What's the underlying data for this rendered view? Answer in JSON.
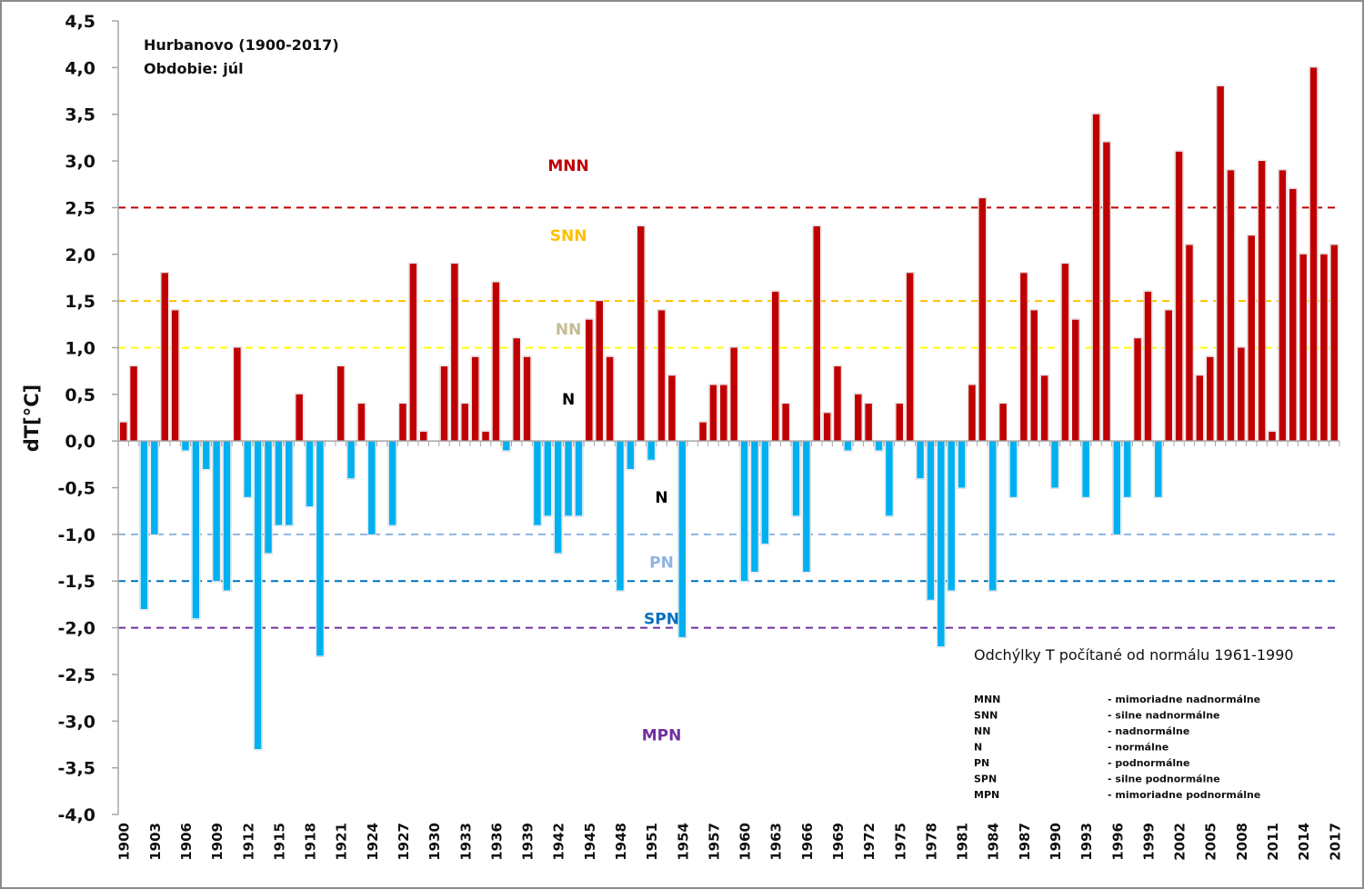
{
  "chart_data": {
    "type": "bar",
    "title": "Hurbanovo (1900-2017)",
    "subtitle": "Obdobie: júl",
    "xlabel": "",
    "ylabel": "dT[°C]",
    "ylim": [
      -4.0,
      4.5
    ],
    "y_ticks": [
      "4,5",
      "4,0",
      "3,5",
      "3,0",
      "2,5",
      "2,0",
      "1,5",
      "1,0",
      "0,5",
      "0,0",
      "-0,5",
      "-1,0",
      "-1,5",
      "-2,0",
      "-2,5",
      "-3,0",
      "-3,5",
      "-4,0"
    ],
    "y_tick_values": [
      4.5,
      4.0,
      3.5,
      3.0,
      2.5,
      2.0,
      1.5,
      1.0,
      0.5,
      0.0,
      -0.5,
      -1.0,
      -1.5,
      -2.0,
      -2.5,
      -3.0,
      -3.5,
      -4.0
    ],
    "x_tick_labels": [
      "1900",
      "1903",
      "1906",
      "1909",
      "1912",
      "1915",
      "1918",
      "1921",
      "1924",
      "1927",
      "1930",
      "1933",
      "1936",
      "1939",
      "1942",
      "1945",
      "1948",
      "1951",
      "1954",
      "1957",
      "1960",
      "1963",
      "1966",
      "1969",
      "1972",
      "1975",
      "1978",
      "1981",
      "1984",
      "1987",
      "1990",
      "1993",
      "1996",
      "1999",
      "2002",
      "2005",
      "2008",
      "2011",
      "2014",
      "2017"
    ],
    "grid": false,
    "positive_color": "#c00000",
    "negative_color": "#00b0f0",
    "years": [
      1900,
      1901,
      1902,
      1903,
      1904,
      1905,
      1906,
      1907,
      1908,
      1909,
      1910,
      1911,
      1912,
      1913,
      1914,
      1915,
      1916,
      1917,
      1918,
      1919,
      1920,
      1921,
      1922,
      1923,
      1924,
      1925,
      1926,
      1927,
      1928,
      1929,
      1930,
      1931,
      1932,
      1933,
      1934,
      1935,
      1936,
      1937,
      1938,
      1939,
      1940,
      1941,
      1942,
      1943,
      1944,
      1945,
      1946,
      1947,
      1948,
      1949,
      1950,
      1951,
      1952,
      1953,
      1954,
      1955,
      1956,
      1957,
      1958,
      1959,
      1960,
      1961,
      1962,
      1963,
      1964,
      1965,
      1966,
      1967,
      1968,
      1969,
      1970,
      1971,
      1972,
      1973,
      1974,
      1975,
      1976,
      1977,
      1978,
      1979,
      1980,
      1981,
      1982,
      1983,
      1984,
      1985,
      1986,
      1987,
      1988,
      1989,
      1990,
      1991,
      1992,
      1993,
      1994,
      1995,
      1996,
      1997,
      1998,
      1999,
      2000,
      2001,
      2002,
      2003,
      2004,
      2005,
      2006,
      2007,
      2008,
      2009,
      2010,
      2011,
      2012,
      2013,
      2014,
      2015,
      2016,
      2017
    ],
    "values": [
      0.2,
      0.8,
      -1.8,
      -1.0,
      1.8,
      1.4,
      -0.1,
      -1.9,
      -0.3,
      -1.5,
      -1.6,
      1.0,
      -0.6,
      -3.3,
      -1.2,
      -0.9,
      -0.9,
      0.5,
      -0.7,
      -2.3,
      0.0,
      0.8,
      -0.4,
      0.4,
      -1.0,
      0.0,
      -0.9,
      0.4,
      1.9,
      0.1,
      0.0,
      0.8,
      1.9,
      0.4,
      0.9,
      0.1,
      1.7,
      -0.1,
      1.1,
      0.9,
      -0.9,
      -0.8,
      -1.2,
      -0.8,
      -0.8,
      1.3,
      1.5,
      0.9,
      -1.6,
      -0.3,
      2.3,
      -0.2,
      1.4,
      0.7,
      -2.1,
      0.0,
      0.2,
      0.6,
      0.6,
      1.0,
      -1.5,
      -1.4,
      -1.1,
      1.6,
      0.4,
      -0.8,
      -1.4,
      2.3,
      0.3,
      0.8,
      -0.1,
      0.5,
      0.4,
      -0.1,
      -0.8,
      0.4,
      1.8,
      -0.4,
      -1.7,
      -2.2,
      -1.6,
      -0.5,
      0.6,
      2.6,
      -1.6,
      0.4,
      -0.6,
      1.8,
      1.4,
      0.7,
      -0.5,
      1.9,
      1.3,
      -0.6,
      3.5,
      3.2,
      -1.0,
      -0.6,
      1.1,
      1.6,
      -0.6,
      1.4,
      3.1,
      2.1,
      0.7,
      0.9,
      3.8,
      2.9,
      1.0,
      2.2,
      3.0,
      0.1,
      2.9,
      2.7,
      2.0,
      4.0,
      2.0,
      2.1
    ],
    "thresholds": [
      {
        "name": "MNN",
        "value": 2.5,
        "color": "#c00000"
      },
      {
        "name": "SNN",
        "value": 1.5,
        "color": "#ffc000"
      },
      {
        "name": "NN",
        "value": 1.0,
        "color": "#ffff00"
      },
      {
        "name": "PN",
        "value": -1.0,
        "color": "#8db4e2"
      },
      {
        "name": "SPN",
        "value": -1.5,
        "color": "#0070c0"
      },
      {
        "name": "MPN",
        "value": -2.0,
        "color": "#7030a0"
      }
    ],
    "zone_labels": [
      {
        "text": "MNN",
        "value": 2.95,
        "year": 1943,
        "color": "#c00000"
      },
      {
        "text": "SNN",
        "value": 2.2,
        "year": 1943,
        "color": "#ffc000"
      },
      {
        "text": "NN",
        "value": 1.2,
        "year": 1943,
        "color": "#c4bd97"
      },
      {
        "text": "N",
        "value": 0.45,
        "year": 1943,
        "color": "#000000"
      },
      {
        "text": "N",
        "value": -0.6,
        "year": 1952,
        "color": "#000000"
      },
      {
        "text": "PN",
        "value": -1.3,
        "year": 1952,
        "color": "#8db4e2"
      },
      {
        "text": "SPN",
        "value": -1.9,
        "year": 1952,
        "color": "#0070c0"
      },
      {
        "text": "MPN",
        "value": -3.15,
        "year": 1952,
        "color": "#7030a0"
      }
    ],
    "annotation": "Odchýlky T počítané od normálu 1961-1990",
    "legend": [
      {
        "code": "MNN",
        "desc": "- mimoriadne nadnormálne"
      },
      {
        "code": "SNN",
        "desc": "- silne nadnormálne"
      },
      {
        "code": "NN",
        "desc": "- nadnormálne"
      },
      {
        "code": "N",
        "desc": "- normálne"
      },
      {
        "code": "PN",
        "desc": "- podnormálne"
      },
      {
        "code": "SPN",
        "desc": "- silne podnormálne"
      },
      {
        "code": "MPN",
        "desc": "- mimoriadne podnormálne"
      }
    ],
    "legend_placement": "bottom-right"
  }
}
